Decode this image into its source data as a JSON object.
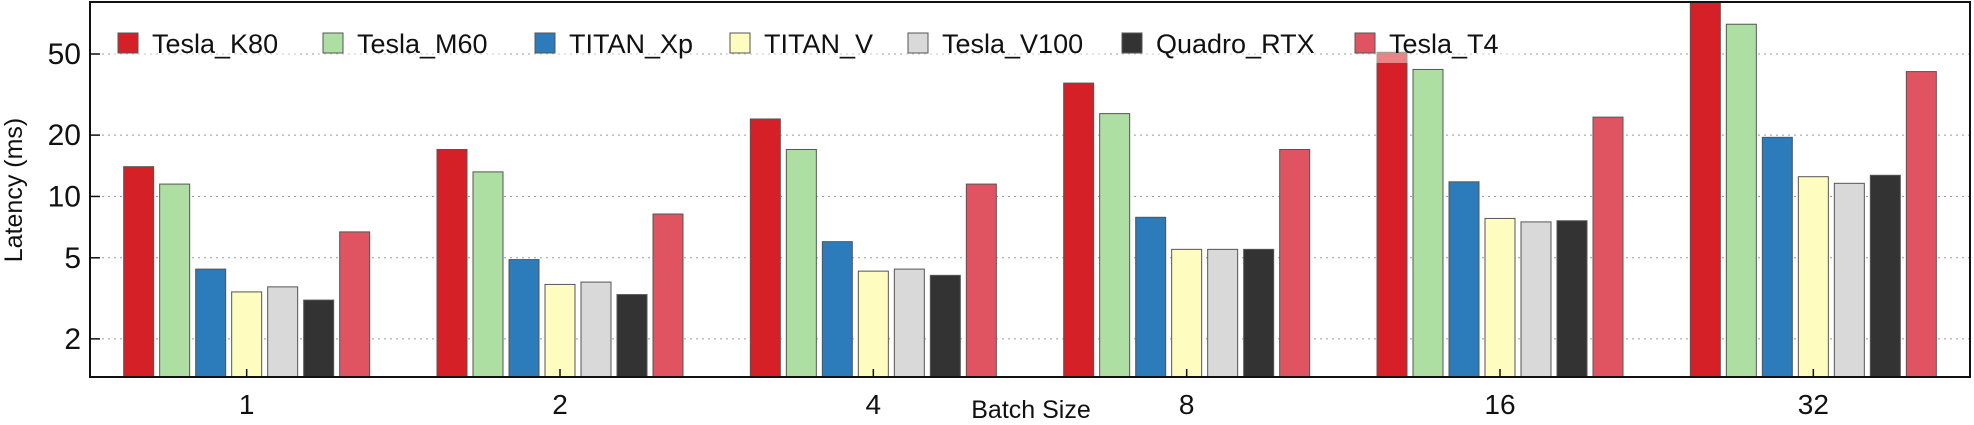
{
  "chart_data": {
    "type": "bar",
    "title": "",
    "xlabel": "Batch Size",
    "ylabel": "Latency (ms)",
    "yscale": "log",
    "ylim": [
      1.3,
      90
    ],
    "yticks": [
      2,
      5,
      10,
      20,
      50
    ],
    "grid": "horizontal-dotted",
    "legend_position": "top",
    "categories": [
      "1",
      "2",
      "4",
      "8",
      "16",
      "32"
    ],
    "series": [
      {
        "name": "Tesla_K80",
        "color": "#d62027",
        "values": [
          14.0,
          17.0,
          24.0,
          36.0,
          51.0,
          90.0
        ]
      },
      {
        "name": "Tesla_M60",
        "color": "#addfa3",
        "values": [
          11.5,
          13.2,
          17.0,
          25.5,
          42.0,
          70.0
        ]
      },
      {
        "name": "TITAN_Xp",
        "color": "#2c7bba",
        "values": [
          4.4,
          4.9,
          6.0,
          7.9,
          11.8,
          19.5
        ]
      },
      {
        "name": "TITAN_V",
        "color": "#fefcbf",
        "values": [
          3.4,
          3.7,
          4.3,
          5.5,
          7.8,
          12.5
        ]
      },
      {
        "name": "Tesla_V100",
        "color": "#d9d9d9",
        "values": [
          3.6,
          3.8,
          4.4,
          5.5,
          7.5,
          11.6
        ]
      },
      {
        "name": "Quadro_RTX",
        "color": "#333333",
        "values": [
          3.1,
          3.3,
          4.1,
          5.5,
          7.6,
          12.7
        ]
      },
      {
        "name": "Tesla_T4",
        "color": "#e05462",
        "values": [
          6.7,
          8.2,
          11.5,
          17.0,
          24.5,
          41.0
        ]
      }
    ]
  }
}
